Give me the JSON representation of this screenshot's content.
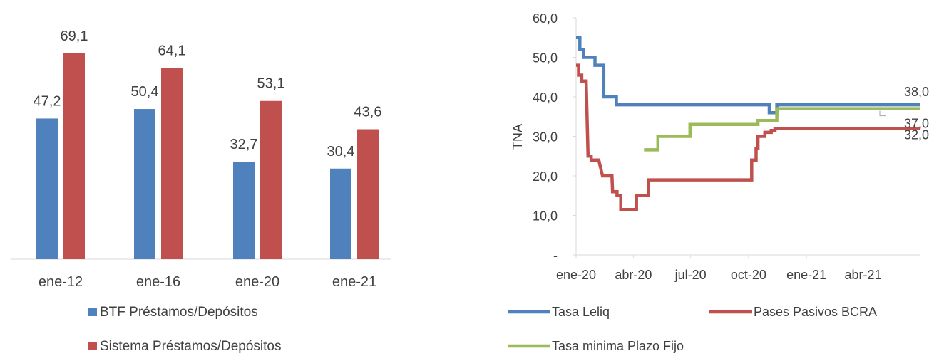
{
  "chart_data": [
    {
      "type": "bar",
      "categories": [
        "ene-12",
        "ene-16",
        "ene-20",
        "ene-21"
      ],
      "series": [
        {
          "name": "BTF Préstamos/Depósitos",
          "values": [
            47.2,
            50.4,
            32.7,
            30.4
          ],
          "labels": [
            "47,2",
            "50,4",
            "32,7",
            "30,4"
          ],
          "color": "#4F81BD"
        },
        {
          "name": "Sistema Préstamos/Depósitos",
          "values": [
            69.1,
            64.1,
            53.1,
            43.6
          ],
          "labels": [
            "69,1",
            "64,1",
            "53,1",
            "43,6"
          ],
          "color": "#C0504D"
        }
      ],
      "ylim": [
        0,
        70
      ],
      "legend_position": "bottom",
      "grid": false
    },
    {
      "type": "line",
      "ylabel": "TNA",
      "yticks": [
        "-",
        "10,0",
        "20,0",
        "30,0",
        "40,0",
        "50,0",
        "60,0"
      ],
      "ytick_values": [
        0,
        10,
        20,
        30,
        40,
        50,
        60
      ],
      "ylim": [
        0,
        60
      ],
      "xticks": [
        "ene-20",
        "abr-20",
        "jul-20",
        "oct-20",
        "ene-21",
        "abr-21"
      ],
      "xtick_dates": [
        "2020-01-01",
        "2020-04-01",
        "2020-07-01",
        "2020-10-01",
        "2021-01-01",
        "2021-04-01"
      ],
      "xlim": [
        "2020-01-01",
        "2021-06-30"
      ],
      "grid": false,
      "legend_position": "bottom",
      "series": [
        {
          "name": "Tasa Leliq",
          "color": "#4F81BD",
          "end_label": "38,0",
          "points": [
            [
              "2020-01-01",
              55
            ],
            [
              "2020-01-07",
              55
            ],
            [
              "2020-01-07",
              52
            ],
            [
              "2020-01-13",
              52
            ],
            [
              "2020-01-13",
              50
            ],
            [
              "2020-01-31",
              50
            ],
            [
              "2020-01-31",
              48
            ],
            [
              "2020-02-14",
              48
            ],
            [
              "2020-02-14",
              40
            ],
            [
              "2020-03-05",
              40
            ],
            [
              "2020-03-05",
              38
            ],
            [
              "2020-11-03",
              38
            ],
            [
              "2020-11-03",
              36
            ],
            [
              "2020-11-15",
              36
            ],
            [
              "2020-11-15",
              38
            ],
            [
              "2021-06-30",
              38
            ]
          ]
        },
        {
          "name": "Pases Pasivos BCRA",
          "color": "#C0504D",
          "end_label": "32,0",
          "points": [
            [
              "2020-01-01",
              48
            ],
            [
              "2020-01-05",
              48
            ],
            [
              "2020-01-05",
              45.5
            ],
            [
              "2020-01-10",
              45.5
            ],
            [
              "2020-01-10",
              44
            ],
            [
              "2020-01-17",
              44
            ],
            [
              "2020-01-20",
              25
            ],
            [
              "2020-01-25",
              25
            ],
            [
              "2020-01-25",
              24
            ],
            [
              "2020-02-06",
              24
            ],
            [
              "2020-02-12",
              20
            ],
            [
              "2020-02-27",
              20
            ],
            [
              "2020-02-28",
              16
            ],
            [
              "2020-03-06",
              16
            ],
            [
              "2020-03-06",
              15
            ],
            [
              "2020-03-12",
              15
            ],
            [
              "2020-03-12",
              11.5
            ],
            [
              "2020-04-06",
              11.5
            ],
            [
              "2020-04-06",
              15
            ],
            [
              "2020-04-25",
              15
            ],
            [
              "2020-04-25",
              19
            ],
            [
              "2020-10-06",
              19
            ],
            [
              "2020-10-06",
              24
            ],
            [
              "2020-10-13",
              24
            ],
            [
              "2020-10-13",
              27
            ],
            [
              "2020-10-16",
              27
            ],
            [
              "2020-10-16",
              30
            ],
            [
              "2020-10-27",
              30
            ],
            [
              "2020-10-27",
              31
            ],
            [
              "2020-11-06",
              31
            ],
            [
              "2020-11-06",
              31.5
            ],
            [
              "2020-11-12",
              31.5
            ],
            [
              "2020-11-12",
              32
            ],
            [
              "2021-06-30",
              32
            ]
          ]
        },
        {
          "name": "Tasa minima Plazo Fijo",
          "color": "#9BBB59",
          "end_label": "37,0",
          "points": [
            [
              "2020-04-18",
              26.6
            ],
            [
              "2020-05-10",
              26.6
            ],
            [
              "2020-05-10",
              30
            ],
            [
              "2020-06-30",
              30
            ],
            [
              "2020-06-30",
              33
            ],
            [
              "2020-10-16",
              33
            ],
            [
              "2020-10-16",
              34
            ],
            [
              "2020-11-15",
              34
            ],
            [
              "2020-11-15",
              37
            ],
            [
              "2021-06-30",
              37
            ]
          ]
        }
      ]
    }
  ]
}
